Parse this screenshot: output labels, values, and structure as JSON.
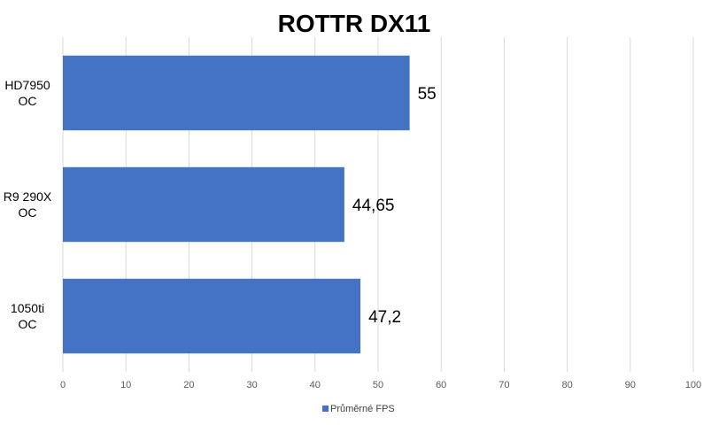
{
  "chart_data": {
    "type": "bar",
    "orientation": "horizontal",
    "title": "ROTTR DX11",
    "categories": [
      [
        "HD7950",
        "OC"
      ],
      [
        "R9 290X",
        "OC"
      ],
      [
        "1050ti",
        "OC"
      ]
    ],
    "series": [
      {
        "name": "Průměrné FPS",
        "values": [
          55,
          44.65,
          47.2
        ],
        "labels": [
          "55",
          "44,65",
          "47,2"
        ],
        "color": "#4472C4"
      }
    ],
    "xlim": [
      0,
      100
    ],
    "xticks": [
      0,
      10,
      20,
      30,
      40,
      50,
      60,
      70,
      80,
      90,
      100
    ],
    "grid": "vertical",
    "legend_position": "bottom"
  }
}
